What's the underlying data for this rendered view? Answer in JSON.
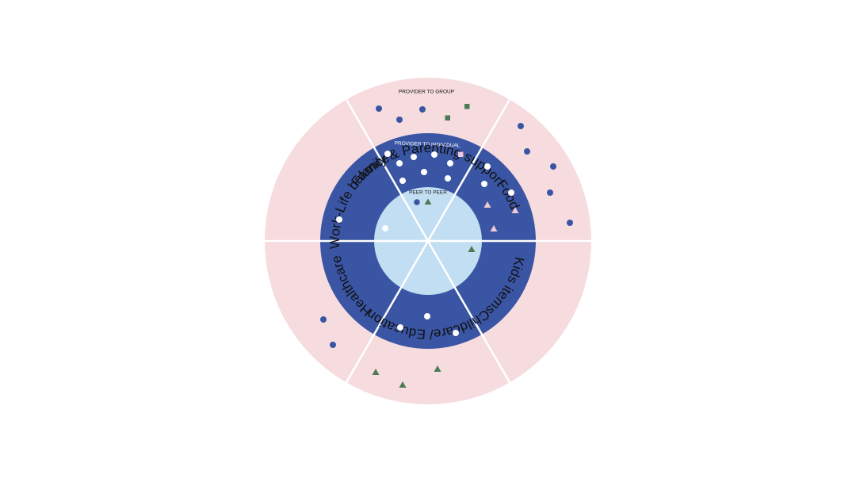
{
  "diagram": {
    "sectors": [
      "Family & Parenting support",
      "Food",
      "Kids items",
      "Childcare/ Education",
      "Healthcare",
      "Work-Life balance"
    ],
    "rings": {
      "outer": "PROVIDER TO GROUP",
      "middle": "PROVIDER TO INDIVIDUAL",
      "inner": "PEER TO PEER"
    },
    "colors": {
      "outer_ring": "#f6dbdf",
      "middle_ring": "#3955a3",
      "inner_ring": "#c2def2",
      "divider": "#ffffff",
      "dot_blue": "#3955a3",
      "dot_white": "#ffffff",
      "shape_green": "#4d7a55",
      "shape_pink": "#f1c8d4"
    },
    "markers": {
      "Family & Parenting support": {
        "outer": {
          "circle_blue": 3,
          "square_green": 2
        },
        "middle": {
          "circle_white": 9,
          "square_pink": 1
        },
        "inner": {
          "circle_blue": 1,
          "triangle_green": 1
        }
      },
      "Food": {
        "outer": {
          "circle_blue": 5
        },
        "middle": {
          "circle_white": 3,
          "triangle_pink": 3
        }
      },
      "Kids items": {
        "inner": {
          "triangle_green": 1
        }
      },
      "Childcare/ Education": {
        "outer": {
          "triangle_green": 3
        },
        "middle": {
          "circle_white": 3
        }
      },
      "Healthcare": {
        "outer": {
          "circle_blue": 2
        }
      },
      "Work-Life balance": {
        "middle": {
          "circle_white": 1
        },
        "inner": {
          "circle_white": 1
        }
      }
    }
  }
}
